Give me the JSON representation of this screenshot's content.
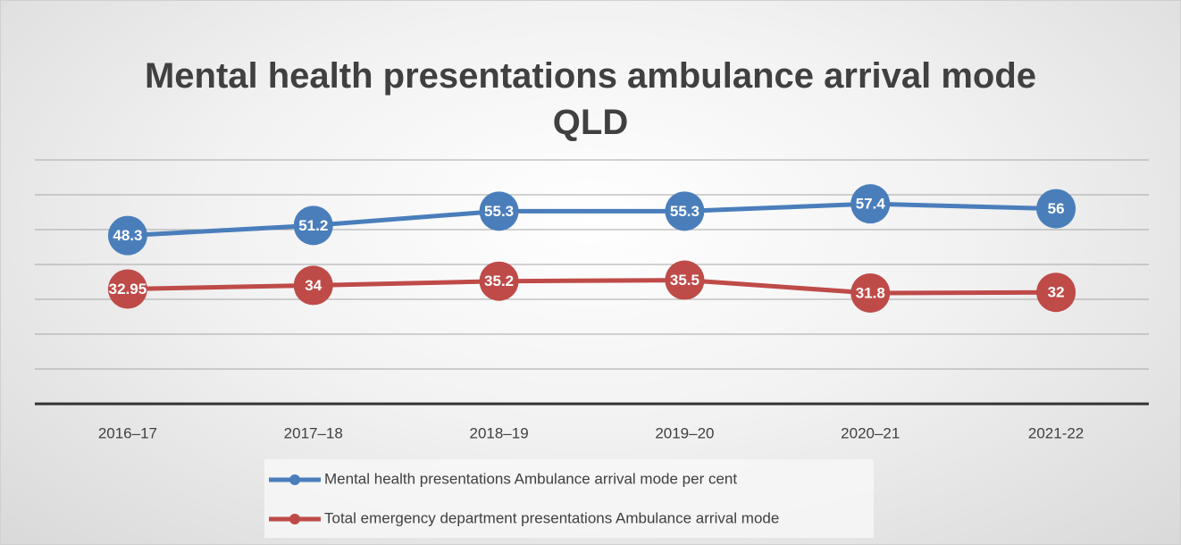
{
  "chart_data": {
    "type": "line",
    "title": "Mental health presentations ambulance arrival mode QLD",
    "categories": [
      "2016–17",
      "2017–18",
      "2018–19",
      "2019–20",
      "2020–21",
      "2021-22"
    ],
    "series": [
      {
        "name": "Mental health presentations Ambulance arrival mode per cent",
        "color": "#4a7ebb",
        "values": [
          48.3,
          51.2,
          55.3,
          55.3,
          57.4,
          56
        ]
      },
      {
        "name": "Total emergency department presentations Ambulance arrival mode",
        "color": "#be4b48",
        "values": [
          32.95,
          34,
          35.2,
          35.5,
          31.8,
          32
        ]
      }
    ],
    "ylim": [
      0,
      70
    ],
    "yticks": [
      10,
      20,
      30,
      40,
      50,
      60,
      70
    ],
    "grid": true,
    "legend": "bottom"
  }
}
